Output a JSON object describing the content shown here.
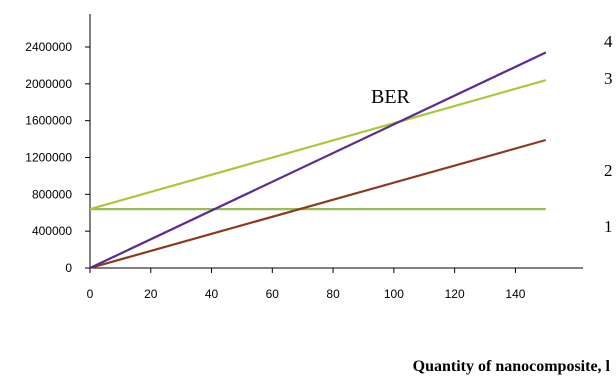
{
  "chart_data": {
    "type": "line",
    "title": "",
    "xlabel": "Quantity of nanocomposite, l",
    "ylabel": "",
    "annotation": "BER",
    "xlim": [
      0,
      150
    ],
    "ylim": [
      0,
      2400000
    ],
    "x_ticks": [
      0,
      20,
      40,
      60,
      80,
      100,
      120,
      140
    ],
    "y_ticks": [
      0,
      400000,
      800000,
      1200000,
      1600000,
      2000000,
      2400000
    ],
    "x_tick_labels": [
      "0",
      "20",
      "40",
      "60",
      "80",
      "100",
      "120",
      "140"
    ],
    "y_tick_labels": [
      "0",
      "400000",
      "800000",
      "1200000",
      "1600000",
      "2000000",
      "2400000"
    ],
    "grid": false,
    "series": [
      {
        "name": "1",
        "color": "#9bbb59",
        "x": [
          0,
          150
        ],
        "y": [
          640000,
          640000
        ]
      },
      {
        "name": "2",
        "color": "#8b3a1e",
        "x": [
          0,
          150
        ],
        "y": [
          0,
          1390000
        ]
      },
      {
        "name": "3",
        "color": "#a8c93a",
        "x": [
          0,
          150
        ],
        "y": [
          640000,
          2040000
        ]
      },
      {
        "name": "4",
        "color": "#5b2c8f",
        "x": [
          0,
          150
        ],
        "y": [
          0,
          2340000
        ]
      }
    ]
  }
}
